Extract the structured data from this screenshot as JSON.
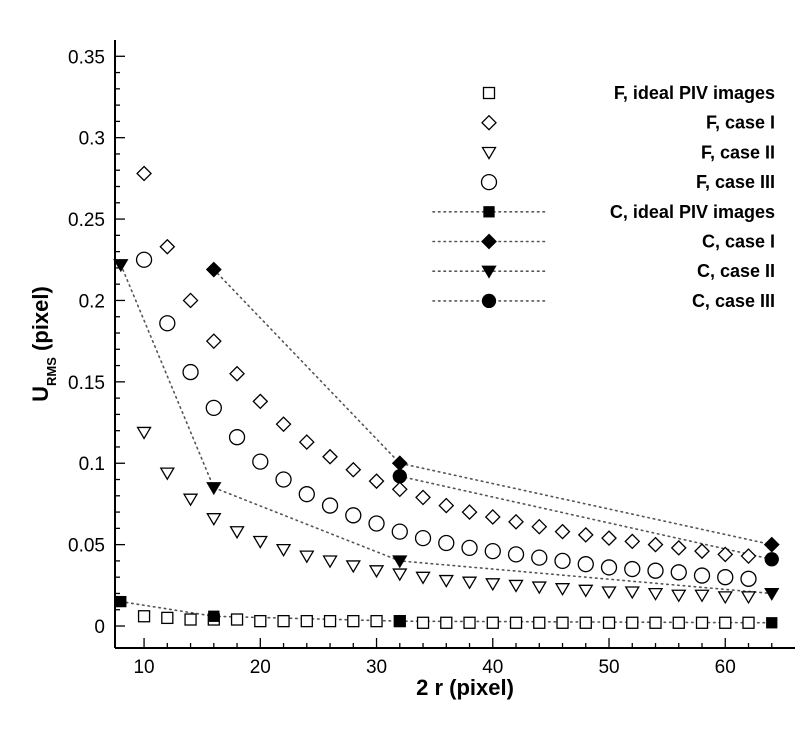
{
  "chart_data": {
    "type": "scatter",
    "title": "",
    "xlabel": "2 r (pixel)",
    "ylabel": {
      "main": "U",
      "sub": "RMS",
      "rest": " (pixel)"
    },
    "xlim": [
      7.5,
      66.0
    ],
    "ylim": [
      -0.0135,
      0.36
    ],
    "xticks": [
      10,
      20,
      30,
      40,
      50,
      60
    ],
    "yticks": [
      0,
      0.05,
      0.1,
      0.15,
      0.2,
      0.25,
      0.3,
      0.35
    ],
    "ytick_labels": [
      "0",
      "0.05",
      "0.1",
      "0.15",
      "0.2",
      "0.25",
      "0.3",
      "0.35"
    ],
    "grid": false,
    "legend_position": "top-right",
    "series": [
      {
        "name": "F, ideal PIV images",
        "marker": "square-open",
        "line": false,
        "x": [
          10,
          12,
          14,
          16,
          18,
          20,
          22,
          24,
          26,
          28,
          30,
          32,
          34,
          36,
          38,
          40,
          42,
          44,
          46,
          48,
          50,
          52,
          54,
          56,
          58,
          60,
          62
        ],
        "y": [
          0.006,
          0.005,
          0.004,
          0.004,
          0.004,
          0.003,
          0.003,
          0.003,
          0.003,
          0.003,
          0.003,
          0.003,
          0.002,
          0.002,
          0.002,
          0.002,
          0.002,
          0.002,
          0.002,
          0.002,
          0.002,
          0.002,
          0.002,
          0.002,
          0.002,
          0.002,
          0.002
        ]
      },
      {
        "name": "F, case I",
        "marker": "diamond-open",
        "line": false,
        "x": [
          10,
          12,
          14,
          16,
          18,
          20,
          22,
          24,
          26,
          28,
          30,
          32,
          34,
          36,
          38,
          40,
          42,
          44,
          46,
          48,
          50,
          52,
          54,
          56,
          58,
          60,
          62
        ],
        "y": [
          0.278,
          0.233,
          0.2,
          0.175,
          0.155,
          0.138,
          0.124,
          0.113,
          0.104,
          0.096,
          0.089,
          0.084,
          0.079,
          0.074,
          0.07,
          0.067,
          0.064,
          0.061,
          0.058,
          0.056,
          0.054,
          0.052,
          0.05,
          0.048,
          0.046,
          0.044,
          0.043
        ]
      },
      {
        "name": "F, case II",
        "marker": "triangle-down-open",
        "line": false,
        "x": [
          10,
          12,
          14,
          16,
          18,
          20,
          22,
          24,
          26,
          28,
          30,
          32,
          34,
          36,
          38,
          40,
          42,
          44,
          46,
          48,
          50,
          52,
          54,
          56,
          58,
          60,
          62
        ],
        "y": [
          0.119,
          0.094,
          0.078,
          0.066,
          0.058,
          0.052,
          0.047,
          0.043,
          0.04,
          0.037,
          0.034,
          0.032,
          0.03,
          0.028,
          0.027,
          0.026,
          0.025,
          0.024,
          0.023,
          0.022,
          0.021,
          0.021,
          0.02,
          0.019,
          0.019,
          0.018,
          0.018
        ]
      },
      {
        "name": "F, case III",
        "marker": "circle-open",
        "line": false,
        "x": [
          10,
          12,
          14,
          16,
          18,
          20,
          22,
          24,
          26,
          28,
          30,
          32,
          34,
          36,
          38,
          40,
          42,
          44,
          46,
          48,
          50,
          52,
          54,
          56,
          58,
          60,
          62
        ],
        "y": [
          0.225,
          0.186,
          0.156,
          0.134,
          0.116,
          0.101,
          0.09,
          0.081,
          0.074,
          0.068,
          0.063,
          0.058,
          0.054,
          0.051,
          0.048,
          0.046,
          0.044,
          0.042,
          0.04,
          0.038,
          0.036,
          0.035,
          0.034,
          0.033,
          0.031,
          0.03,
          0.029
        ]
      },
      {
        "name": "C, ideal PIV images",
        "marker": "square-filled",
        "line": true,
        "x": [
          8,
          16,
          32,
          64
        ],
        "y": [
          0.015,
          0.006,
          0.003,
          0.002
        ]
      },
      {
        "name": "C, case I",
        "marker": "diamond-filled",
        "line": true,
        "x": [
          16,
          32,
          64
        ],
        "y": [
          0.219,
          0.1,
          0.05
        ]
      },
      {
        "name": "C, case II",
        "marker": "triangle-down-filled",
        "line": true,
        "x": [
          8,
          16,
          32,
          64
        ],
        "y": [
          0.222,
          0.085,
          0.04,
          0.02
        ]
      },
      {
        "name": "C, case III",
        "marker": "circle-filled",
        "line": true,
        "x": [
          32,
          64
        ],
        "y": [
          0.092,
          0.041
        ]
      }
    ]
  }
}
